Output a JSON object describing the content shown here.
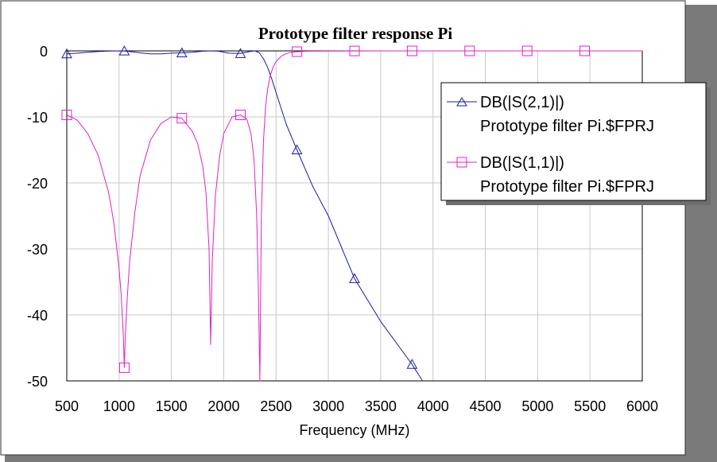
{
  "chart_data": {
    "type": "line",
    "title": "Prototype filter response Pi",
    "xlabel": "Frequency (MHz)",
    "ylabel": "",
    "xlim": [
      500,
      6000
    ],
    "ylim": [
      -50,
      0
    ],
    "xticks": [
      500,
      1000,
      1500,
      2000,
      2500,
      3000,
      3500,
      4000,
      4500,
      5000,
      5500,
      6000
    ],
    "yticks": [
      0,
      -10,
      -20,
      -30,
      -40,
      -50
    ],
    "grid": true,
    "legend_position": "top-right",
    "series": [
      {
        "name": "DB(|S(2,1)|)",
        "source": "Prototype filter Pi.$FPRJ",
        "color": "#1a1aaa",
        "marker": "triangle",
        "x": [
          500,
          600,
          700,
          800,
          900,
          1000,
          1050,
          1100,
          1200,
          1300,
          1400,
          1500,
          1600,
          1700,
          1800,
          1880,
          1950,
          2050,
          2160,
          2250,
          2300,
          2340,
          2380,
          2420,
          2460,
          2500,
          2550,
          2600,
          2700,
          2850,
          3000,
          3250,
          3500,
          3800,
          3900
        ],
        "y": [
          -0.45,
          -0.35,
          -0.2,
          -0.1,
          -0.02,
          0,
          -0.02,
          -0.1,
          -0.3,
          -0.45,
          -0.45,
          -0.35,
          -0.3,
          -0.2,
          -0.05,
          0,
          -0.05,
          -0.35,
          -0.4,
          -0.1,
          0,
          -0.3,
          -1.2,
          -2.5,
          -4.3,
          -6.3,
          -8.8,
          -11.2,
          -15,
          -20.5,
          -25,
          -34.5,
          -41,
          -47.5,
          -50
        ],
        "markers_x": [
          500,
          1050,
          1600,
          2160,
          2700,
          3250,
          3800
        ]
      },
      {
        "name": "DB(|S(1,1)|)",
        "source": "Prototype filter Pi.$FPRJ",
        "color": "#e020c8",
        "marker": "square",
        "x": [
          500,
          600,
          700,
          800,
          900,
          950,
          1000,
          1020,
          1040,
          1050,
          1060,
          1080,
          1100,
          1150,
          1200,
          1300,
          1400,
          1500,
          1600,
          1700,
          1750,
          1800,
          1830,
          1860,
          1875,
          1890,
          1920,
          1960,
          2000,
          2080,
          2160,
          2220,
          2260,
          2290,
          2315,
          2330,
          2345,
          2360,
          2380,
          2400,
          2420,
          2440,
          2470,
          2500,
          2550,
          2600,
          2650,
          2700,
          2800,
          3000,
          3500,
          4000,
          4500,
          5000,
          5500,
          6000
        ],
        "y": [
          -9.7,
          -10.5,
          -12.5,
          -15.8,
          -21.5,
          -26,
          -33,
          -37,
          -43,
          -48,
          -43,
          -37,
          -32,
          -24.5,
          -19,
          -13.5,
          -11,
          -10,
          -10.2,
          -12.2,
          -14,
          -17.5,
          -21.5,
          -30,
          -44.5,
          -32,
          -22,
          -16,
          -12.5,
          -10,
          -9.7,
          -10.3,
          -12.5,
          -16.5,
          -25,
          -35,
          -50,
          -25,
          -13.5,
          -8.5,
          -5.8,
          -4,
          -2.5,
          -1.6,
          -0.8,
          -0.4,
          -0.2,
          -0.12,
          -0.05,
          -0.02,
          0,
          0,
          0,
          0,
          0,
          0
        ],
        "markers_x": [
          500,
          1050,
          1600,
          2160,
          2700,
          3250,
          3800,
          4350,
          4900,
          5450
        ]
      }
    ]
  }
}
